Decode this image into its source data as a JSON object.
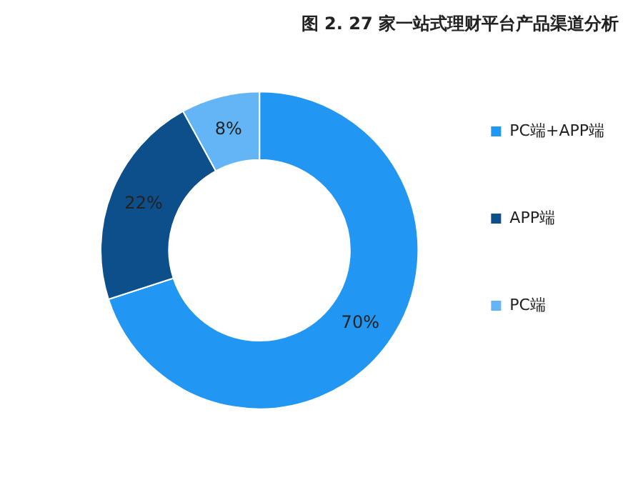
{
  "chart_data": {
    "type": "donut",
    "title": "图 2. 27 家一站式理财平台产品渠道分析",
    "categories": [
      "PC端+APP端",
      "APP端",
      "PC端"
    ],
    "values": [
      70,
      22,
      8
    ],
    "colors": [
      "#2196f3",
      "#0d4f8b",
      "#64b5f6"
    ],
    "value_labels": [
      "70%",
      "22%",
      "8%"
    ],
    "legend": "right"
  }
}
